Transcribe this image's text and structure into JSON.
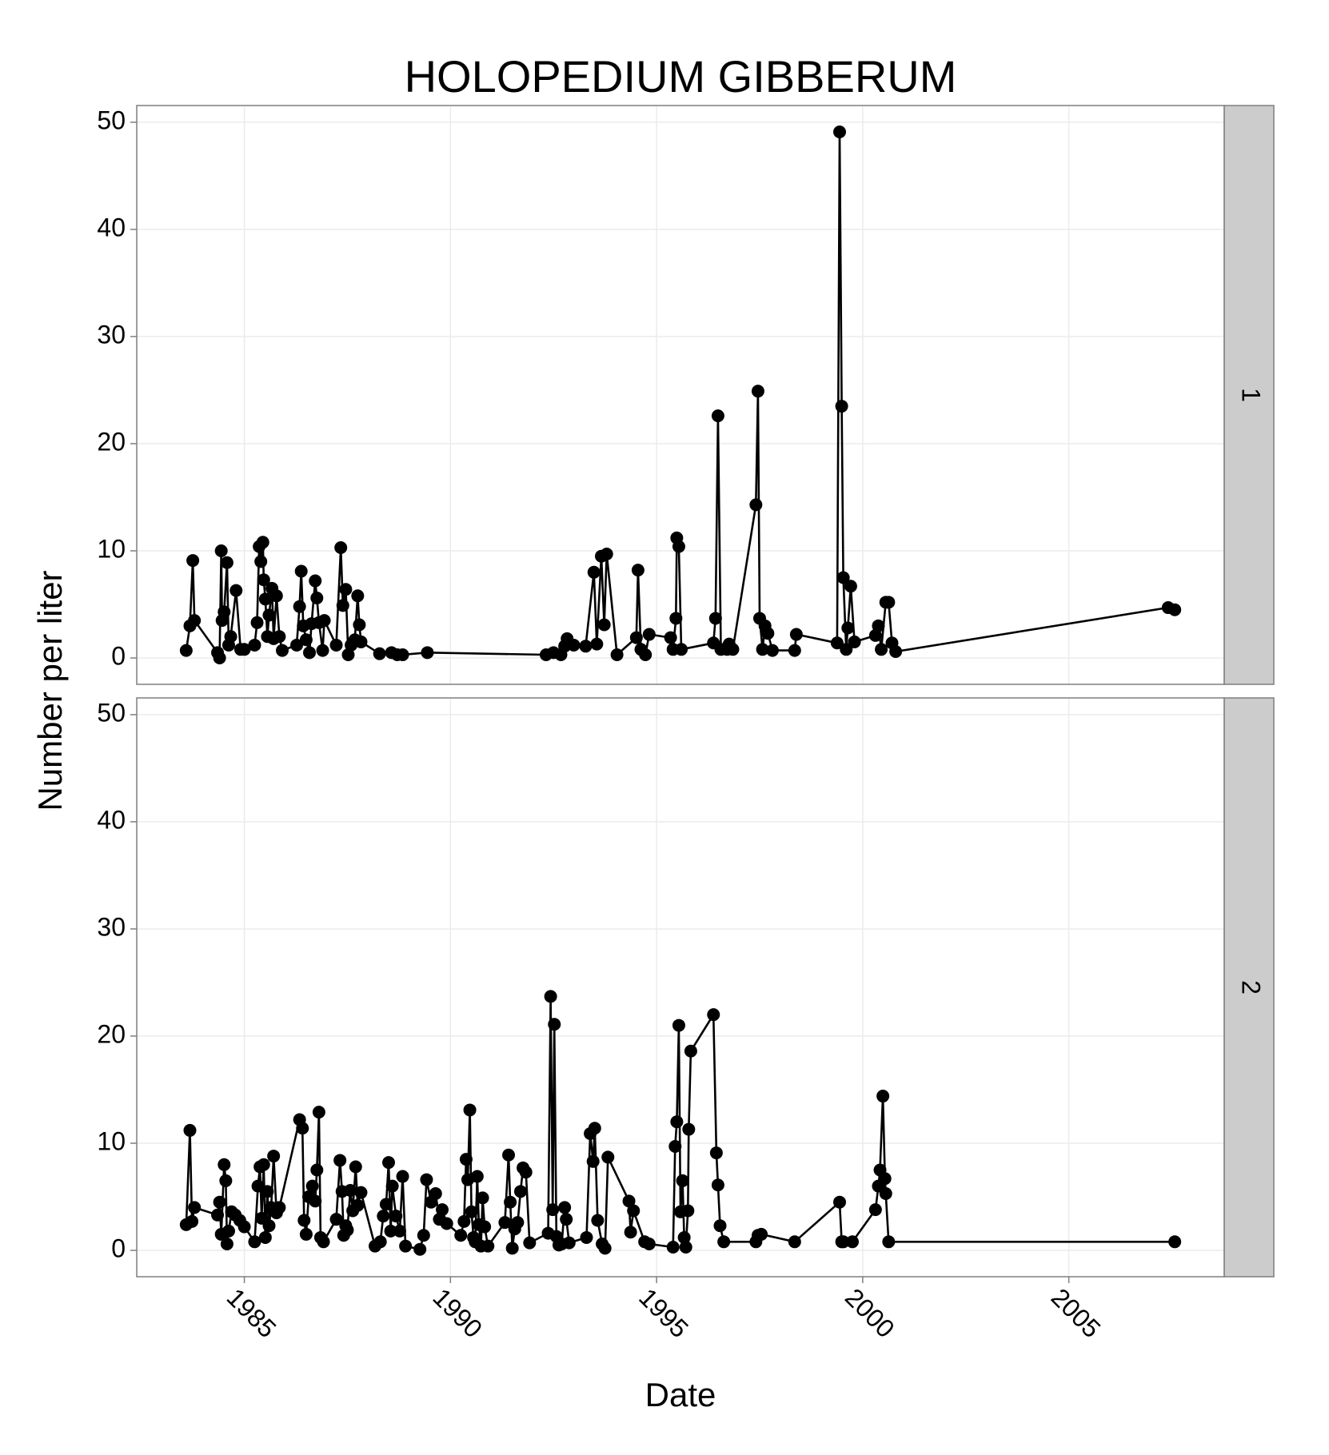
{
  "chart_data": {
    "type": "line",
    "title": "HOLOPEDIUM GIBBERUM",
    "x_label": "Date",
    "y_label": "Number per liter",
    "xlim": [
      1982.39,
      2008.77
    ],
    "xticks": [
      1985,
      1990,
      1995,
      2000,
      2005
    ],
    "ylim": [
      -2.46,
      51.56
    ],
    "yticks": [
      0,
      10,
      20,
      30,
      40,
      50
    ],
    "grid": true,
    "color": "#000000",
    "panels": [
      {
        "strip": "1",
        "x": [
          1983.59,
          1983.68,
          1983.75,
          1983.79,
          1984.35,
          1984.4,
          1984.44,
          1984.46,
          1984.51,
          1984.58,
          1984.62,
          1984.67,
          1984.8,
          1984.91,
          1985.0,
          1985.25,
          1985.31,
          1985.36,
          1985.4,
          1985.45,
          1985.47,
          1985.51,
          1985.56,
          1985.6,
          1985.67,
          1985.71,
          1985.78,
          1985.85,
          1985.92,
          1986.27,
          1986.34,
          1986.38,
          1986.43,
          1986.5,
          1986.58,
          1986.63,
          1986.72,
          1986.76,
          1986.81,
          1986.9,
          1986.94,
          1987.23,
          1987.34,
          1987.39,
          1987.46,
          1987.52,
          1987.59,
          1987.68,
          1987.75,
          1987.79,
          1987.83,
          1988.28,
          1988.57,
          1988.71,
          1988.84,
          1989.44,
          1992.32,
          1992.5,
          1992.68,
          1992.77,
          1992.83,
          1992.99,
          1993.28,
          1993.48,
          1993.55,
          1993.66,
          1993.73,
          1993.79,
          1994.04,
          1994.51,
          1994.55,
          1994.62,
          1994.73,
          1994.82,
          1995.34,
          1995.4,
          1995.47,
          1995.49,
          1995.54,
          1995.6,
          1996.38,
          1996.43,
          1996.49,
          1996.56,
          1996.71,
          1996.76,
          1996.85,
          1997.41,
          1997.46,
          1997.5,
          1997.57,
          1997.63,
          1997.7,
          1997.81,
          1998.35,
          1998.39,
          1999.38,
          1999.44,
          1999.49,
          1999.53,
          1999.6,
          1999.64,
          1999.71,
          1999.8,
          2000.31,
          2000.38,
          2000.45,
          2000.56,
          2000.63,
          2000.71,
          2000.8,
          2007.41,
          2007.57
        ],
        "values": [
          0.7,
          3.0,
          9.1,
          3.5,
          0.5,
          0.0,
          10.0,
          3.5,
          4.3,
          8.9,
          1.2,
          2.0,
          6.3,
          0.8,
          0.8,
          1.2,
          3.3,
          10.4,
          9.0,
          10.8,
          7.3,
          5.5,
          2.0,
          4.0,
          6.5,
          1.8,
          5.8,
          2.0,
          0.7,
          1.2,
          4.8,
          8.1,
          3.0,
          1.7,
          0.5,
          3.2,
          7.2,
          5.6,
          3.3,
          0.7,
          3.5,
          1.2,
          10.3,
          4.9,
          6.4,
          0.3,
          1.2,
          1.7,
          5.8,
          3.1,
          1.5,
          0.4,
          0.5,
          0.3,
          0.3,
          0.5,
          0.3,
          0.5,
          0.3,
          1.1,
          1.8,
          1.2,
          1.1,
          8.0,
          1.3,
          9.5,
          3.1,
          9.7,
          0.3,
          1.9,
          8.2,
          0.8,
          0.3,
          2.2,
          1.9,
          0.8,
          3.7,
          11.2,
          10.4,
          0.8,
          1.4,
          3.7,
          22.6,
          0.8,
          0.8,
          1.3,
          0.8,
          14.3,
          24.9,
          3.7,
          0.8,
          3.0,
          2.3,
          0.7,
          0.7,
          2.2,
          1.4,
          49.1,
          23.5,
          7.5,
          0.8,
          2.8,
          6.7,
          1.5,
          2.1,
          3.0,
          0.8,
          5.2,
          5.2,
          1.4,
          0.6,
          4.7,
          4.5
        ]
      },
      {
        "strip": "2",
        "x": [
          1983.59,
          1983.68,
          1983.73,
          1983.79,
          1984.35,
          1984.4,
          1984.44,
          1984.51,
          1984.55,
          1984.58,
          1984.62,
          1984.69,
          1984.78,
          1984.89,
          1985.0,
          1985.25,
          1985.33,
          1985.38,
          1985.42,
          1985.47,
          1985.51,
          1985.56,
          1985.6,
          1985.65,
          1985.71,
          1985.78,
          1985.85,
          1986.34,
          1986.41,
          1986.45,
          1986.5,
          1986.56,
          1986.65,
          1986.72,
          1986.76,
          1986.81,
          1986.85,
          1986.92,
          1987.23,
          1987.32,
          1987.37,
          1987.41,
          1987.46,
          1987.5,
          1987.57,
          1987.63,
          1987.7,
          1987.75,
          1987.83,
          1988.17,
          1988.3,
          1988.37,
          1988.44,
          1988.5,
          1988.55,
          1988.59,
          1988.68,
          1988.77,
          1988.84,
          1988.91,
          1989.26,
          1989.35,
          1989.42,
          1989.53,
          1989.64,
          1989.73,
          1989.8,
          1989.91,
          1990.25,
          1990.33,
          1990.38,
          1990.42,
          1990.47,
          1990.51,
          1990.56,
          1990.6,
          1990.65,
          1990.69,
          1990.74,
          1990.78,
          1990.83,
          1990.91,
          1991.32,
          1991.41,
          1991.45,
          1991.5,
          1991.56,
          1991.63,
          1991.7,
          1991.76,
          1991.83,
          1991.92,
          1992.37,
          1992.43,
          1992.48,
          1992.52,
          1992.57,
          1992.63,
          1992.7,
          1992.77,
          1992.81,
          1992.88,
          1993.3,
          1993.39,
          1993.46,
          1993.5,
          1993.57,
          1993.68,
          1993.75,
          1993.82,
          1994.33,
          1994.37,
          1994.44,
          1994.71,
          1994.82,
          1995.4,
          1995.45,
          1995.49,
          1995.54,
          1995.58,
          1995.63,
          1995.67,
          1995.71,
          1995.76,
          1995.78,
          1995.83,
          1996.38,
          1996.45,
          1996.49,
          1996.54,
          1996.63,
          1997.41,
          1997.46,
          1997.54,
          1998.35,
          1999.44,
          1999.49,
          1999.53,
          1999.75,
          2000.31,
          2000.38,
          2000.42,
          2000.49,
          2000.54,
          2000.56,
          2000.63,
          2007.57
        ],
        "values": [
          2.4,
          11.2,
          2.7,
          4.0,
          3.3,
          4.5,
          1.5,
          8.0,
          6.5,
          0.6,
          1.8,
          3.6,
          3.3,
          2.8,
          2.2,
          0.8,
          6.0,
          7.8,
          3.0,
          8.0,
          1.2,
          5.5,
          2.3,
          4.0,
          8.8,
          3.5,
          4.0,
          12.2,
          11.4,
          2.8,
          1.5,
          5.0,
          6.0,
          4.6,
          7.5,
          12.9,
          1.2,
          0.8,
          2.9,
          8.4,
          5.5,
          1.4,
          2.3,
          1.9,
          5.6,
          3.7,
          7.8,
          4.2,
          5.4,
          0.4,
          0.8,
          3.2,
          4.3,
          8.2,
          1.8,
          6.0,
          3.2,
          1.8,
          6.9,
          0.4,
          0.1,
          1.4,
          6.6,
          4.5,
          5.3,
          2.9,
          3.8,
          2.5,
          1.4,
          2.7,
          8.5,
          6.6,
          13.1,
          3.6,
          1.2,
          0.8,
          6.9,
          2.4,
          0.4,
          4.9,
          2.2,
          0.4,
          2.6,
          8.9,
          4.5,
          0.2,
          2.0,
          2.6,
          5.5,
          7.7,
          7.3,
          0.7,
          1.6,
          23.7,
          3.8,
          21.1,
          1.3,
          0.5,
          0.6,
          4.0,
          2.9,
          0.7,
          1.2,
          10.9,
          8.3,
          11.4,
          2.8,
          0.6,
          0.2,
          8.7,
          4.6,
          1.7,
          3.7,
          0.8,
          0.6,
          0.3,
          9.7,
          12.0,
          21.0,
          3.6,
          6.5,
          1.2,
          0.3,
          3.7,
          11.3,
          18.6,
          22.0,
          9.1,
          6.1,
          2.3,
          0.8,
          0.8,
          1.4,
          1.5,
          0.8,
          4.5,
          0.8,
          0.8,
          0.8,
          3.8,
          6.0,
          7.5,
          14.4,
          6.7,
          5.3,
          0.8,
          0.8
        ]
      }
    ]
  }
}
